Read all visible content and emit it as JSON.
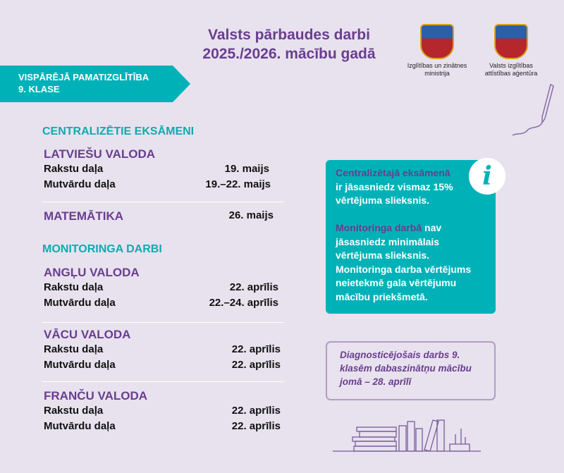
{
  "header": {
    "title_line1": "Valsts pārbaudes darbi",
    "title_line2": "2025./2026. mācību gadā"
  },
  "logos": [
    {
      "label_line1": "Izglītības un zinātnes",
      "label_line2": "ministrija"
    },
    {
      "label_line1": "Valsts izglītības",
      "label_line2": "attīstības aģentūra"
    }
  ],
  "banner": {
    "line1": "VISPĀRĒJĀ PAMATIZGLĪTĪBA",
    "line2": "9. KLASE"
  },
  "centralized": {
    "heading": "CENTRALIZĒTIE EKSĀMENI",
    "latvian": {
      "name": "LATVIEŠU VALODA",
      "rows": [
        {
          "label": "Rakstu daļa",
          "date": "19. maijs"
        },
        {
          "label": "Mutvārdu daļa",
          "date": "19.–22. maijs"
        }
      ]
    },
    "math": {
      "name": "MATEMĀTIKA",
      "date": "26. maijs"
    }
  },
  "monitoring": {
    "heading": "MONITORINGA DARBI",
    "subjects": [
      {
        "name": "ANGĻU VALODA",
        "rows": [
          {
            "label": "Rakstu daļa",
            "date": "22. aprīlis"
          },
          {
            "label": "Mutvārdu daļa",
            "date": "22.–24. aprīlis"
          }
        ]
      },
      {
        "name": "VĀCU VALODA",
        "rows": [
          {
            "label": "Rakstu daļa",
            "date": "22. aprīlis"
          },
          {
            "label": "Mutvārdu daļa",
            "date": "22. aprīlis"
          }
        ]
      },
      {
        "name": "FRANČU VALODA",
        "rows": [
          {
            "label": "Rakstu daļa",
            "date": "22. aprīlis"
          },
          {
            "label": "Mutvārdu daļa",
            "date": "22. aprīlis"
          }
        ]
      }
    ]
  },
  "info": {
    "icon": "info-icon",
    "p1_highlight": "Centralizētajā eksāmenā",
    "p1_rest": "ir jāsasniedz vismaz 15% vērtējuma slieksnis.",
    "p2_highlight": "Monitoringa darbā",
    "p2_rest": "nav jāsasniedz minimālais vērtējuma slieksnis. Monitoringa darba vērtējums neietekmē gala vērtējumu mācību priekšmetā."
  },
  "diagnostic": {
    "text": "Diagnosticējošais darbs 9. klasēm dabaszinātņu mācību jomā – 28. aprīlī"
  },
  "colors": {
    "teal": "#00b2b8",
    "purple": "#6a3d8f",
    "background": "#e7e2ee"
  }
}
